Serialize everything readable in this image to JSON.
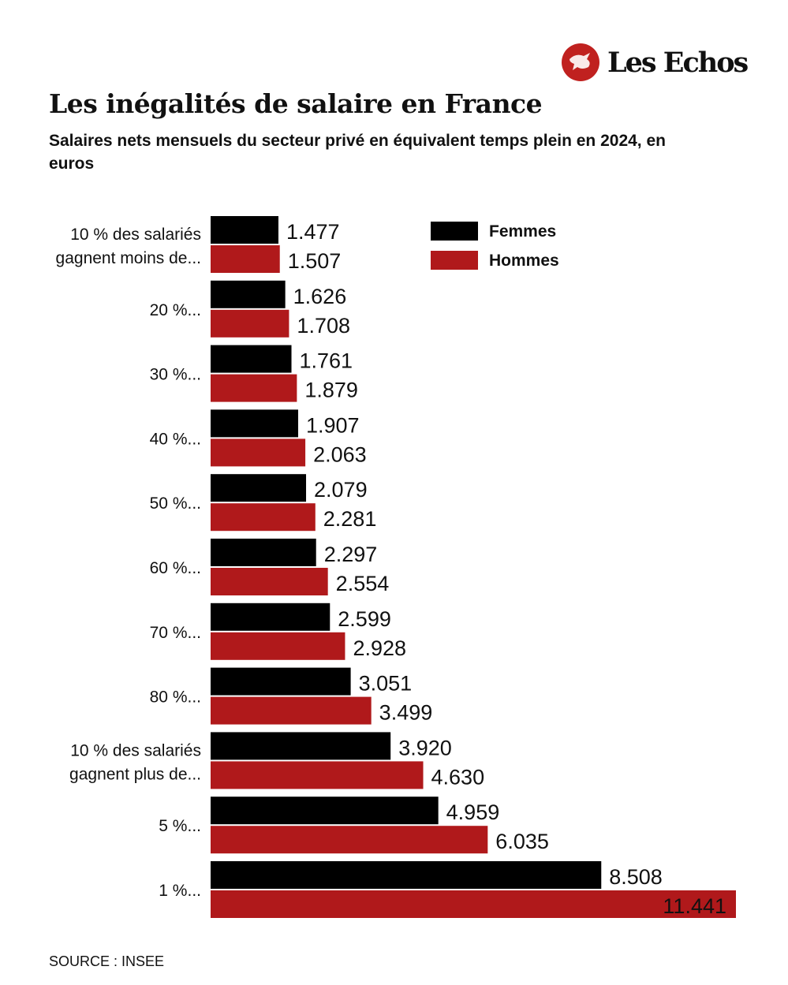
{
  "brand": {
    "name": "Les Echos",
    "color": "#c0211f"
  },
  "title": "Les inégalités de salaire en France",
  "subtitle": "Salaires nets mensuels du secteur privé en équivalent temps plein en 2024, en euros",
  "source": "SOURCE : INSEE",
  "chart_data": {
    "type": "bar",
    "orientation": "horizontal",
    "title": "Les inégalités de salaire en France",
    "subtitle": "Salaires nets mensuels du secteur privé en équivalent temps plein en 2024, en euros",
    "categories": [
      [
        "10 % des salariés",
        "gagnent moins de..."
      ],
      [
        "20 %..."
      ],
      [
        "30 %..."
      ],
      [
        "40 %..."
      ],
      [
        "50 %..."
      ],
      [
        "60 %..."
      ],
      [
        "70 %..."
      ],
      [
        "80 %..."
      ],
      [
        "10 % des salariés",
        "gagnent plus de..."
      ],
      [
        "5 %..."
      ],
      [
        "1 %..."
      ]
    ],
    "series": [
      {
        "name": "Femmes",
        "color": "#000000",
        "values": [
          1477,
          1626,
          1761,
          1907,
          2079,
          2297,
          2599,
          3051,
          3920,
          4959,
          8508
        ],
        "labels": [
          "1.477",
          "1.626",
          "1.761",
          "1.907",
          "2.079",
          "2.297",
          "2.599",
          "3.051",
          "3.920",
          "4.959",
          "8.508"
        ]
      },
      {
        "name": "Hommes",
        "color": "#b0191b",
        "values": [
          1507,
          1708,
          1879,
          2063,
          2281,
          2554,
          2928,
          3499,
          4630,
          6035,
          11441
        ],
        "labels": [
          "1.507",
          "1.708",
          "1.879",
          "2.063",
          "2.281",
          "2.554",
          "2.928",
          "3.499",
          "4.630",
          "6.035",
          "11.441"
        ]
      }
    ],
    "xlim": [
      0,
      11441
    ],
    "grid": false,
    "legend": "top-right",
    "xlabel": "",
    "ylabel": ""
  }
}
